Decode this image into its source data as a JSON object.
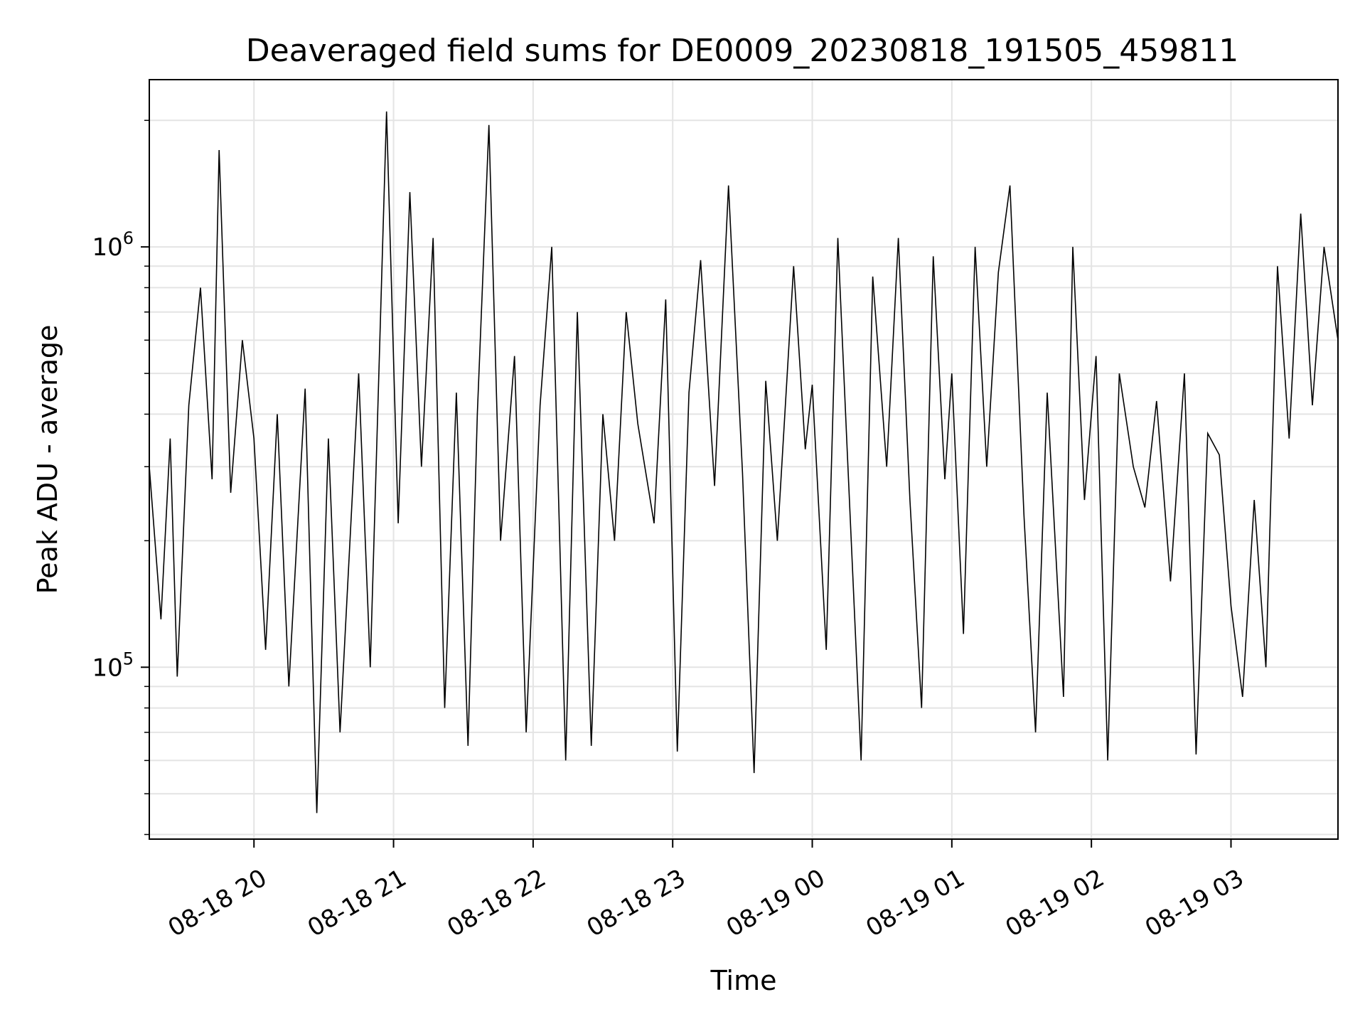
{
  "chart_data": {
    "type": "line",
    "title": "Deaveraged field sums for DE0009_20230818_191505_459811",
    "xlabel": "Time",
    "ylabel": "Peak ADU - average",
    "yscale": "log",
    "xlim": [
      "08-18 19:15",
      "08-19 03:46"
    ],
    "ylim": [
      39000,
      2500000
    ],
    "grid": true,
    "line_color": "#000000",
    "x_ticks": [
      {
        "label": "08-18 20",
        "time": "08-18 20:00"
      },
      {
        "label": "08-18 21",
        "time": "08-18 21:00"
      },
      {
        "label": "08-18 22",
        "time": "08-18 22:00"
      },
      {
        "label": "08-18 23",
        "time": "08-18 23:00"
      },
      {
        "label": "08-19 00",
        "time": "08-19 00:00"
      },
      {
        "label": "08-19 01",
        "time": "08-19 01:00"
      },
      {
        "label": "08-19 02",
        "time": "08-19 02:00"
      },
      {
        "label": "08-19 03",
        "time": "08-19 03:00"
      }
    ],
    "y_ticks": [
      {
        "base": "10",
        "exp": "5",
        "value": 100000
      },
      {
        "base": "10",
        "exp": "6",
        "value": 1000000
      }
    ],
    "series": [
      {
        "points": [
          [
            "08-18 19:15",
            300000
          ],
          [
            "08-18 19:20",
            130000
          ],
          [
            "08-18 19:24",
            350000
          ],
          [
            "08-18 19:27",
            95000
          ],
          [
            "08-18 19:32",
            420000
          ],
          [
            "08-18 19:37",
            800000
          ],
          [
            "08-18 19:42",
            280000
          ],
          [
            "08-18 19:45",
            1700000
          ],
          [
            "08-18 19:50",
            260000
          ],
          [
            "08-18 19:55",
            600000
          ],
          [
            "08-18 20:00",
            350000
          ],
          [
            "08-18 20:05",
            110000
          ],
          [
            "08-18 20:10",
            400000
          ],
          [
            "08-18 20:15",
            90000
          ],
          [
            "08-18 20:22",
            460000
          ],
          [
            "08-18 20:27",
            45000
          ],
          [
            "08-18 20:32",
            350000
          ],
          [
            "08-18 20:37",
            70000
          ],
          [
            "08-18 20:45",
            500000
          ],
          [
            "08-18 20:50",
            100000
          ],
          [
            "08-18 20:57",
            2100000
          ],
          [
            "08-18 21:02",
            220000
          ],
          [
            "08-18 21:07",
            1350000
          ],
          [
            "08-18 21:12",
            300000
          ],
          [
            "08-18 21:17",
            1050000
          ],
          [
            "08-18 21:22",
            80000
          ],
          [
            "08-18 21:27",
            450000
          ],
          [
            "08-18 21:32",
            65000
          ],
          [
            "08-18 21:36",
            400000
          ],
          [
            "08-18 21:41",
            1950000
          ],
          [
            "08-18 21:46",
            200000
          ],
          [
            "08-18 21:52",
            550000
          ],
          [
            "08-18 21:57",
            70000
          ],
          [
            "08-18 22:03",
            420000
          ],
          [
            "08-18 22:08",
            1000000
          ],
          [
            "08-18 22:14",
            60000
          ],
          [
            "08-18 22:19",
            700000
          ],
          [
            "08-18 22:25",
            65000
          ],
          [
            "08-18 22:30",
            400000
          ],
          [
            "08-18 22:35",
            200000
          ],
          [
            "08-18 22:40",
            700000
          ],
          [
            "08-18 22:45",
            380000
          ],
          [
            "08-18 22:52",
            220000
          ],
          [
            "08-18 22:57",
            750000
          ],
          [
            "08-18 23:02",
            63000
          ],
          [
            "08-18 23:07",
            450000
          ],
          [
            "08-18 23:12",
            930000
          ],
          [
            "08-18 23:18",
            270000
          ],
          [
            "08-18 23:24",
            1400000
          ],
          [
            "08-18 23:30",
            290000
          ],
          [
            "08-18 23:35",
            56000
          ],
          [
            "08-18 23:40",
            480000
          ],
          [
            "08-18 23:45",
            200000
          ],
          [
            "08-18 23:52",
            900000
          ],
          [
            "08-18 23:57",
            330000
          ],
          [
            "08-19 00:00",
            470000
          ],
          [
            "08-19 00:06",
            110000
          ],
          [
            "08-19 00:11",
            1050000
          ],
          [
            "08-19 00:15",
            330000
          ],
          [
            "08-19 00:21",
            60000
          ],
          [
            "08-19 00:26",
            850000
          ],
          [
            "08-19 00:32",
            300000
          ],
          [
            "08-19 00:37",
            1050000
          ],
          [
            "08-19 00:42",
            250000
          ],
          [
            "08-19 00:47",
            80000
          ],
          [
            "08-19 00:52",
            950000
          ],
          [
            "08-19 00:57",
            280000
          ],
          [
            "08-19 01:00",
            500000
          ],
          [
            "08-19 01:05",
            120000
          ],
          [
            "08-19 01:10",
            1000000
          ],
          [
            "08-19 01:15",
            300000
          ],
          [
            "08-19 01:20",
            870000
          ],
          [
            "08-19 01:25",
            1400000
          ],
          [
            "08-19 01:31",
            230000
          ],
          [
            "08-19 01:36",
            70000
          ],
          [
            "08-19 01:41",
            450000
          ],
          [
            "08-19 01:48",
            85000
          ],
          [
            "08-19 01:52",
            1000000
          ],
          [
            "08-19 01:57",
            250000
          ],
          [
            "08-19 02:02",
            550000
          ],
          [
            "08-19 02:07",
            60000
          ],
          [
            "08-19 02:12",
            500000
          ],
          [
            "08-19 02:18",
            300000
          ],
          [
            "08-19 02:23",
            240000
          ],
          [
            "08-19 02:28",
            430000
          ],
          [
            "08-19 02:34",
            160000
          ],
          [
            "08-19 02:40",
            500000
          ],
          [
            "08-19 02:45",
            62000
          ],
          [
            "08-19 02:50",
            360000
          ],
          [
            "08-19 02:55",
            320000
          ],
          [
            "08-19 03:00",
            140000
          ],
          [
            "08-19 03:05",
            85000
          ],
          [
            "08-19 03:10",
            250000
          ],
          [
            "08-19 03:15",
            100000
          ],
          [
            "08-19 03:20",
            900000
          ],
          [
            "08-19 03:25",
            350000
          ],
          [
            "08-19 03:30",
            1200000
          ],
          [
            "08-19 03:35",
            420000
          ],
          [
            "08-19 03:40",
            1000000
          ],
          [
            "08-19 03:46",
            600000
          ]
        ]
      }
    ]
  }
}
